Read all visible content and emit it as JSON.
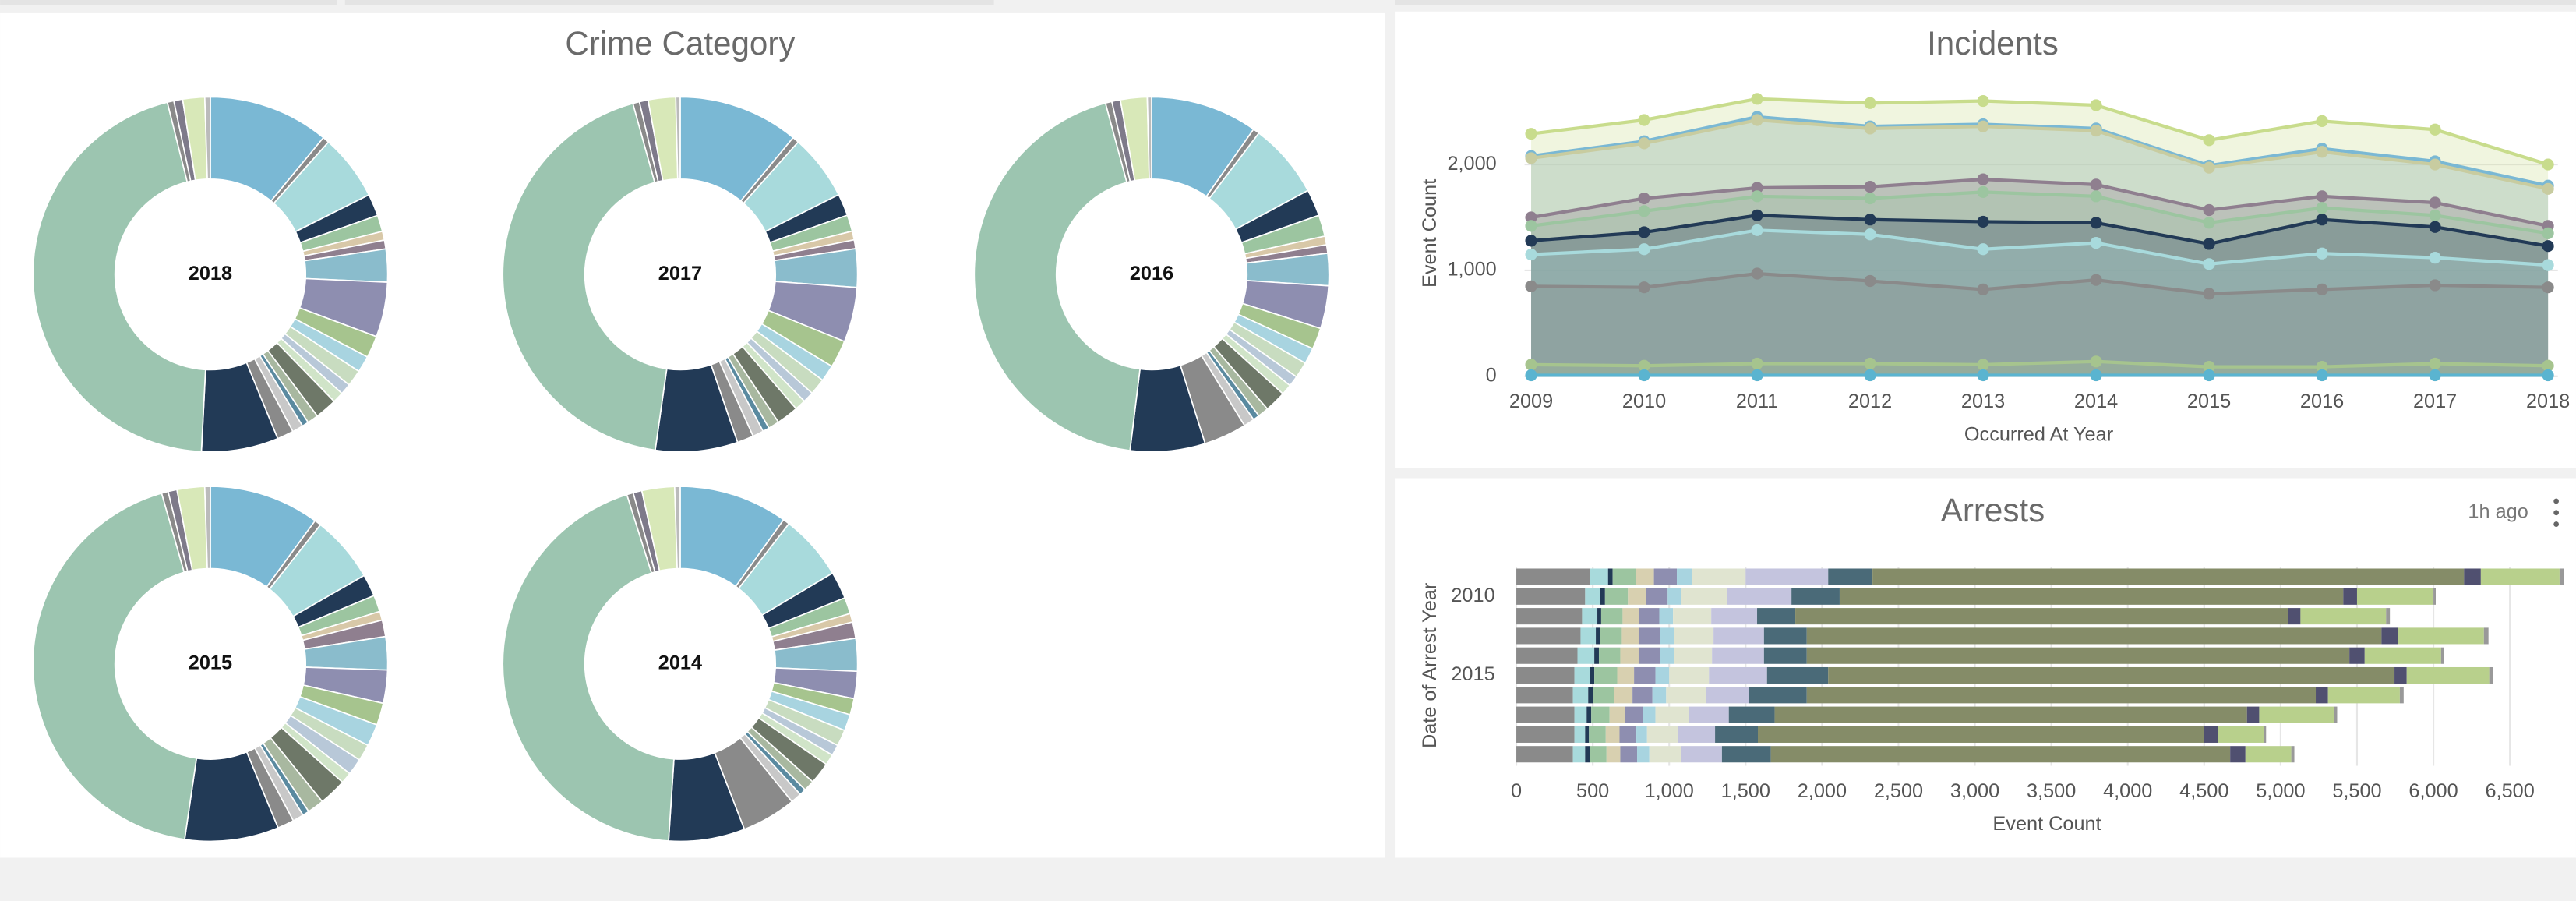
{
  "chart_data": [
    {
      "type": "pie",
      "title": "Crime Category",
      "colors": [
        "#7ab8d4",
        "#8a8a8a",
        "#a8dadc",
        "#223a56",
        "#9cc5a0",
        "#d8c8a8",
        "#8f7f8f",
        "#8abccc",
        "#8e8eb0",
        "#a6c48e",
        "#a8d4e0",
        "#c8dcc0",
        "#b8c8d8",
        "#d0e4c8",
        "#6e7868",
        "#a8b8a0",
        "#5a8aa0",
        "#c8c8c8",
        "#8a8a8a",
        "#223a56",
        "#9cc5b0",
        "#8a8a8a",
        "#7e7a8a",
        "#d8e8b8",
        "#bbbbbb"
      ],
      "series": [
        {
          "name": "2018",
          "values": [
            11,
            0.6,
            6,
            2,
            1.5,
            0.8,
            0.8,
            3,
            5,
            2,
            1.5,
            1.5,
            1,
            1,
            2,
            1,
            0.6,
            1,
            1.5,
            7,
            45.3,
            0.6,
            0.8,
            2,
            0.5
          ]
        },
        {
          "name": "2017",
          "values": [
            11,
            0.6,
            6,
            2,
            1.5,
            0.8,
            0.8,
            3.5,
            5,
            2.5,
            1.5,
            1.5,
            1,
            1,
            2,
            1,
            0.6,
            1,
            1.5,
            7.5,
            43.5,
            0.6,
            0.8,
            2.5,
            0.4
          ]
        },
        {
          "name": "2016",
          "values": [
            10,
            0.6,
            7,
            2.5,
            2,
            0.8,
            0.8,
            3,
            4,
            2,
            1.5,
            1.5,
            1,
            1,
            2,
            1,
            0.6,
            1,
            4,
            7,
            45,
            0.6,
            0.8,
            2.5,
            0.4
          ]
        },
        {
          "name": "2015",
          "values": [
            10,
            0.6,
            6,
            2,
            1.5,
            0.8,
            1.5,
            3,
            3,
            2,
            2,
            1.5,
            1.5,
            1,
            2.5,
            1.5,
            0.6,
            1,
            1.5,
            8.5,
            43,
            0.6,
            0.8,
            2.5,
            0.5
          ]
        },
        {
          "name": "2014",
          "values": [
            10,
            0.6,
            6,
            2.5,
            1.5,
            0.8,
            1.5,
            3,
            2.5,
            1.5,
            1.5,
            1.5,
            1,
            1,
            2,
            1,
            0.6,
            1,
            5,
            7,
            44.5,
            0.6,
            0.8,
            3,
            0.5
          ]
        }
      ]
    },
    {
      "type": "area",
      "title": "Incidents",
      "x_label": "Occurred At Year",
      "y_label": "Event Count",
      "x": [
        2009,
        2010,
        2011,
        2012,
        2013,
        2014,
        2015,
        2016,
        2017,
        2018
      ],
      "xlim": [
        2009,
        2018
      ],
      "xticks": [
        2009,
        2010,
        2011,
        2012,
        2013,
        2014,
        2015,
        2016,
        2017,
        2018
      ],
      "ylim": [
        0,
        2700
      ],
      "yticks": [
        0,
        {
          "value": 1000,
          "label": "1,000"
        },
        {
          "value": 2000,
          "label": "2,000"
        }
      ],
      "grid": true,
      "series": [
        {
          "color": "#c8dc8c",
          "values": [
            2290,
            2420,
            2620,
            2580,
            2600,
            2560,
            2230,
            2410,
            2330,
            2000
          ]
        },
        {
          "color": "#7ab8d4",
          "values": [
            2080,
            2220,
            2450,
            2360,
            2380,
            2340,
            1990,
            2150,
            2030,
            1800
          ]
        },
        {
          "color": "#c8cca0",
          "values": [
            2060,
            2200,
            2420,
            2340,
            2360,
            2320,
            1970,
            2120,
            2000,
            1770
          ]
        },
        {
          "color": "#8f7f8f",
          "values": [
            1500,
            1680,
            1780,
            1790,
            1860,
            1810,
            1570,
            1700,
            1640,
            1420
          ]
        },
        {
          "color": "#9cc5a0",
          "values": [
            1420,
            1560,
            1700,
            1680,
            1740,
            1700,
            1450,
            1590,
            1520,
            1350
          ]
        },
        {
          "color": "#223a56",
          "values": [
            1280,
            1360,
            1520,
            1480,
            1460,
            1450,
            1250,
            1480,
            1410,
            1230
          ]
        },
        {
          "color": "#a8dadc",
          "values": [
            1150,
            1200,
            1380,
            1340,
            1200,
            1260,
            1060,
            1160,
            1120,
            1050
          ]
        },
        {
          "color": "#8a8a8a",
          "values": [
            850,
            840,
            970,
            900,
            820,
            910,
            780,
            820,
            860,
            840
          ]
        },
        {
          "color": "#a6c48e",
          "values": [
            110,
            100,
            120,
            120,
            110,
            140,
            90,
            90,
            120,
            100
          ]
        },
        {
          "color": "#5ab4d0",
          "values": [
            10,
            10,
            10,
            10,
            10,
            10,
            10,
            10,
            10,
            10
          ]
        }
      ]
    },
    {
      "type": "hbar-stacked",
      "title": "Arrests",
      "annotation": "1h ago",
      "x_label": "Event Count",
      "y_label": "Date of Arrest Year",
      "categories": [
        null,
        2010,
        null,
        null,
        null,
        2015,
        null,
        null,
        null,
        null
      ],
      "xlim": [
        0,
        6900
      ],
      "xticks": [
        0,
        500,
        {
          "value": 1000,
          "label": "1,000"
        },
        {
          "value": 1500,
          "label": "1,500"
        },
        {
          "value": 2000,
          "label": "2,000"
        },
        {
          "value": 2500,
          "label": "2,500"
        },
        {
          "value": 3000,
          "label": "3,000"
        },
        {
          "value": 3500,
          "label": "3,500"
        },
        {
          "value": 4000,
          "label": "4,000"
        },
        {
          "value": 4500,
          "label": "4,500"
        },
        {
          "value": 5000,
          "label": "5,000"
        },
        {
          "value": 5500,
          "label": "5,500"
        },
        {
          "value": 6000,
          "label": "6,000"
        },
        {
          "value": 6500,
          "label": "6,500"
        }
      ],
      "grid": true,
      "series": [
        {
          "color": "#8a8a8a",
          "values": [
            480,
            450,
            430,
            420,
            400,
            380,
            370,
            380,
            380,
            370
          ]
        },
        {
          "color": "#a8dadc",
          "values": [
            120,
            100,
            100,
            100,
            110,
            100,
            100,
            80,
            70,
            80
          ]
        },
        {
          "color": "#223a56",
          "values": [
            30,
            30,
            25,
            30,
            30,
            30,
            30,
            30,
            25,
            30
          ]
        },
        {
          "color": "#9cc5a0",
          "values": [
            150,
            150,
            140,
            140,
            140,
            150,
            140,
            120,
            110,
            110
          ]
        },
        {
          "color": "#d8d0b0",
          "values": [
            120,
            120,
            110,
            110,
            120,
            110,
            120,
            100,
            90,
            90
          ]
        },
        {
          "color": "#8e8eb0",
          "values": [
            150,
            140,
            130,
            140,
            140,
            140,
            130,
            120,
            110,
            110
          ]
        },
        {
          "color": "#a8d4e0",
          "values": [
            100,
            90,
            90,
            90,
            90,
            90,
            90,
            80,
            70,
            80
          ]
        },
        {
          "color": "#e0e4d0",
          "values": [
            350,
            300,
            250,
            260,
            250,
            260,
            260,
            220,
            200,
            210
          ]
        },
        {
          "color": "#c4c4de",
          "values": [
            540,
            420,
            300,
            330,
            340,
            380,
            280,
            260,
            245,
            265
          ]
        },
        {
          "color": "#4a6a78",
          "values": [
            290,
            315,
            250,
            280,
            280,
            400,
            380,
            300,
            280,
            320
          ]
        },
        {
          "color": "#858c68",
          "values": [
            3870,
            3295,
            3225,
            3760,
            3550,
            3705,
            3330,
            3090,
            2920,
            3005
          ]
        },
        {
          "color": "#505070",
          "values": [
            110,
            90,
            80,
            110,
            100,
            80,
            80,
            80,
            90,
            100
          ]
        },
        {
          "color": "#b8d08c",
          "values": [
            515,
            500,
            560,
            560,
            500,
            540,
            470,
            490,
            300,
            300
          ]
        },
        {
          "color": "#999999",
          "values": [
            30,
            15,
            25,
            30,
            20,
            25,
            25,
            20,
            15,
            20
          ]
        }
      ]
    }
  ]
}
